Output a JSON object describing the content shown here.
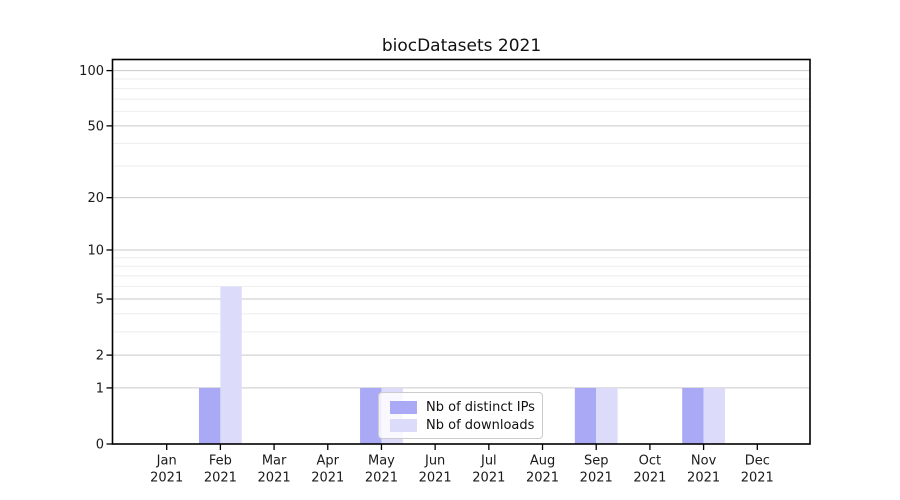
{
  "figure": {
    "background": "#ffffff"
  },
  "chart_data": {
    "type": "bar",
    "title": "biocDatasets 2021",
    "categories": [
      "Jan 2021",
      "Feb 2021",
      "Mar 2021",
      "Apr 2021",
      "May 2021",
      "Jun 2021",
      "Jul 2021",
      "Aug 2021",
      "Sep 2021",
      "Oct 2021",
      "Nov 2021",
      "Dec 2021"
    ],
    "series": [
      {
        "name": "Nb of distinct IPs",
        "color": "#a9a9f5",
        "values": [
          0,
          1,
          0,
          0,
          1,
          0,
          0,
          0,
          1,
          0,
          1,
          0
        ]
      },
      {
        "name": "Nb of downloads",
        "color": "#dcdcfa",
        "values": [
          0,
          6,
          0,
          0,
          1,
          0,
          0,
          0,
          1,
          0,
          1,
          0
        ]
      }
    ],
    "xlabel": "",
    "ylabel": "",
    "yscale": "log1p",
    "ylim": [
      0,
      115
    ],
    "yticks": [
      0,
      1,
      2,
      5,
      10,
      20,
      50,
      100
    ],
    "minor_gridlines": [
      3,
      4,
      6,
      7,
      8,
      9,
      30,
      40,
      60,
      70,
      80,
      90
    ],
    "grid": "horizontal",
    "legend_position": "lower-center"
  },
  "colors": {
    "major_grid": "#c9c9c9",
    "minor_grid": "#eeeeee",
    "axis_line": "#000000",
    "tick_text": "#1a1a1a",
    "title_text": "#111111",
    "legend_border": "#cccccc"
  }
}
